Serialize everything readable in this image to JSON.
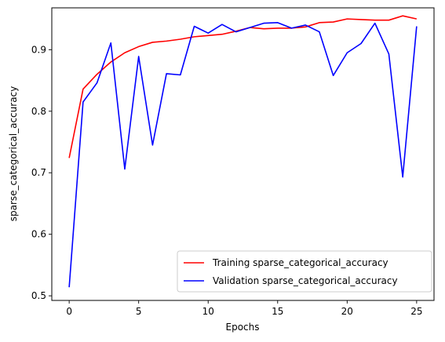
{
  "chart_data": {
    "type": "line",
    "title": "",
    "xlabel": "Epochs",
    "ylabel": "sparse_categorical_accuracy",
    "xlim": [
      -1.25,
      26.25
    ],
    "ylim": [
      0.4925,
      0.968
    ],
    "xticks": [
      0,
      5,
      10,
      15,
      20,
      25
    ],
    "yticks": [
      0.5,
      0.6,
      0.7,
      0.8,
      0.9
    ],
    "xtick_labels": [
      "0",
      "5",
      "10",
      "15",
      "20",
      "25"
    ],
    "ytick_labels": [
      "0.5",
      "0.6",
      "0.7",
      "0.8",
      "0.9"
    ],
    "legend_position": "bottom-right",
    "grid": false,
    "x": [
      0,
      1,
      2,
      3,
      4,
      5,
      6,
      7,
      8,
      9,
      10,
      11,
      12,
      13,
      14,
      15,
      16,
      17,
      18,
      19,
      20,
      21,
      22,
      23,
      24,
      25
    ],
    "series": [
      {
        "name": "Training sparse_categorical_accuracy",
        "color": "#ff0000",
        "values": [
          0.724,
          0.836,
          0.86,
          0.88,
          0.895,
          0.905,
          0.912,
          0.914,
          0.917,
          0.921,
          0.923,
          0.925,
          0.93,
          0.936,
          0.934,
          0.935,
          0.935,
          0.937,
          0.944,
          0.945,
          0.95,
          0.949,
          0.948,
          0.948,
          0.955,
          0.95
        ]
      },
      {
        "name": "Validation sparse_categorical_accuracy",
        "color": "#0000ff",
        "values": [
          0.514,
          0.815,
          0.846,
          0.911,
          0.706,
          0.889,
          0.745,
          0.861,
          0.859,
          0.938,
          0.927,
          0.941,
          0.929,
          0.936,
          0.943,
          0.944,
          0.935,
          0.94,
          0.929,
          0.858,
          0.895,
          0.91,
          0.943,
          0.893,
          0.693,
          0.938
        ]
      }
    ]
  }
}
